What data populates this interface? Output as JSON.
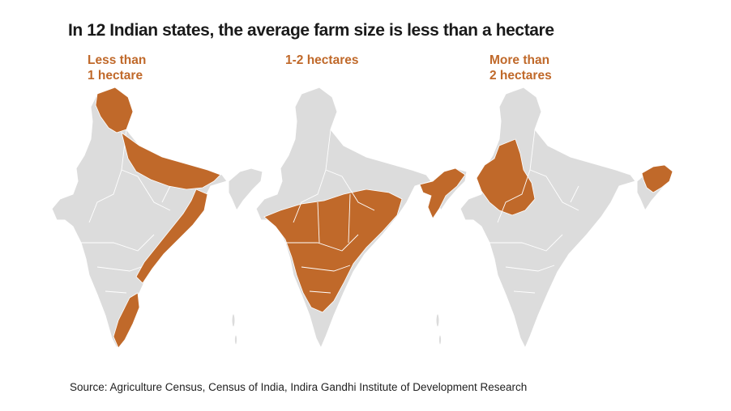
{
  "title": "In 12 Indian states, the average farm size is less than a hectare",
  "colors": {
    "highlight": "#c0692a",
    "base": "#dcdcdc",
    "border": "#ffffff"
  },
  "panels": [
    {
      "label_lines": [
        "Less than",
        "1 hectare"
      ],
      "highlighted_regions": [
        "north",
        "gangetic",
        "east-coast",
        "south-tip"
      ]
    },
    {
      "label_lines": [
        "1-2 hectares"
      ],
      "highlighted_regions": [
        "central",
        "northeast"
      ]
    },
    {
      "label_lines": [
        "More than",
        "2 hectares"
      ],
      "highlighted_regions": [
        "northwest",
        "arunachal"
      ]
    }
  ],
  "source": "Source: Agriculture Census, Census of India, Indira Gandhi Institute of Development Research"
}
